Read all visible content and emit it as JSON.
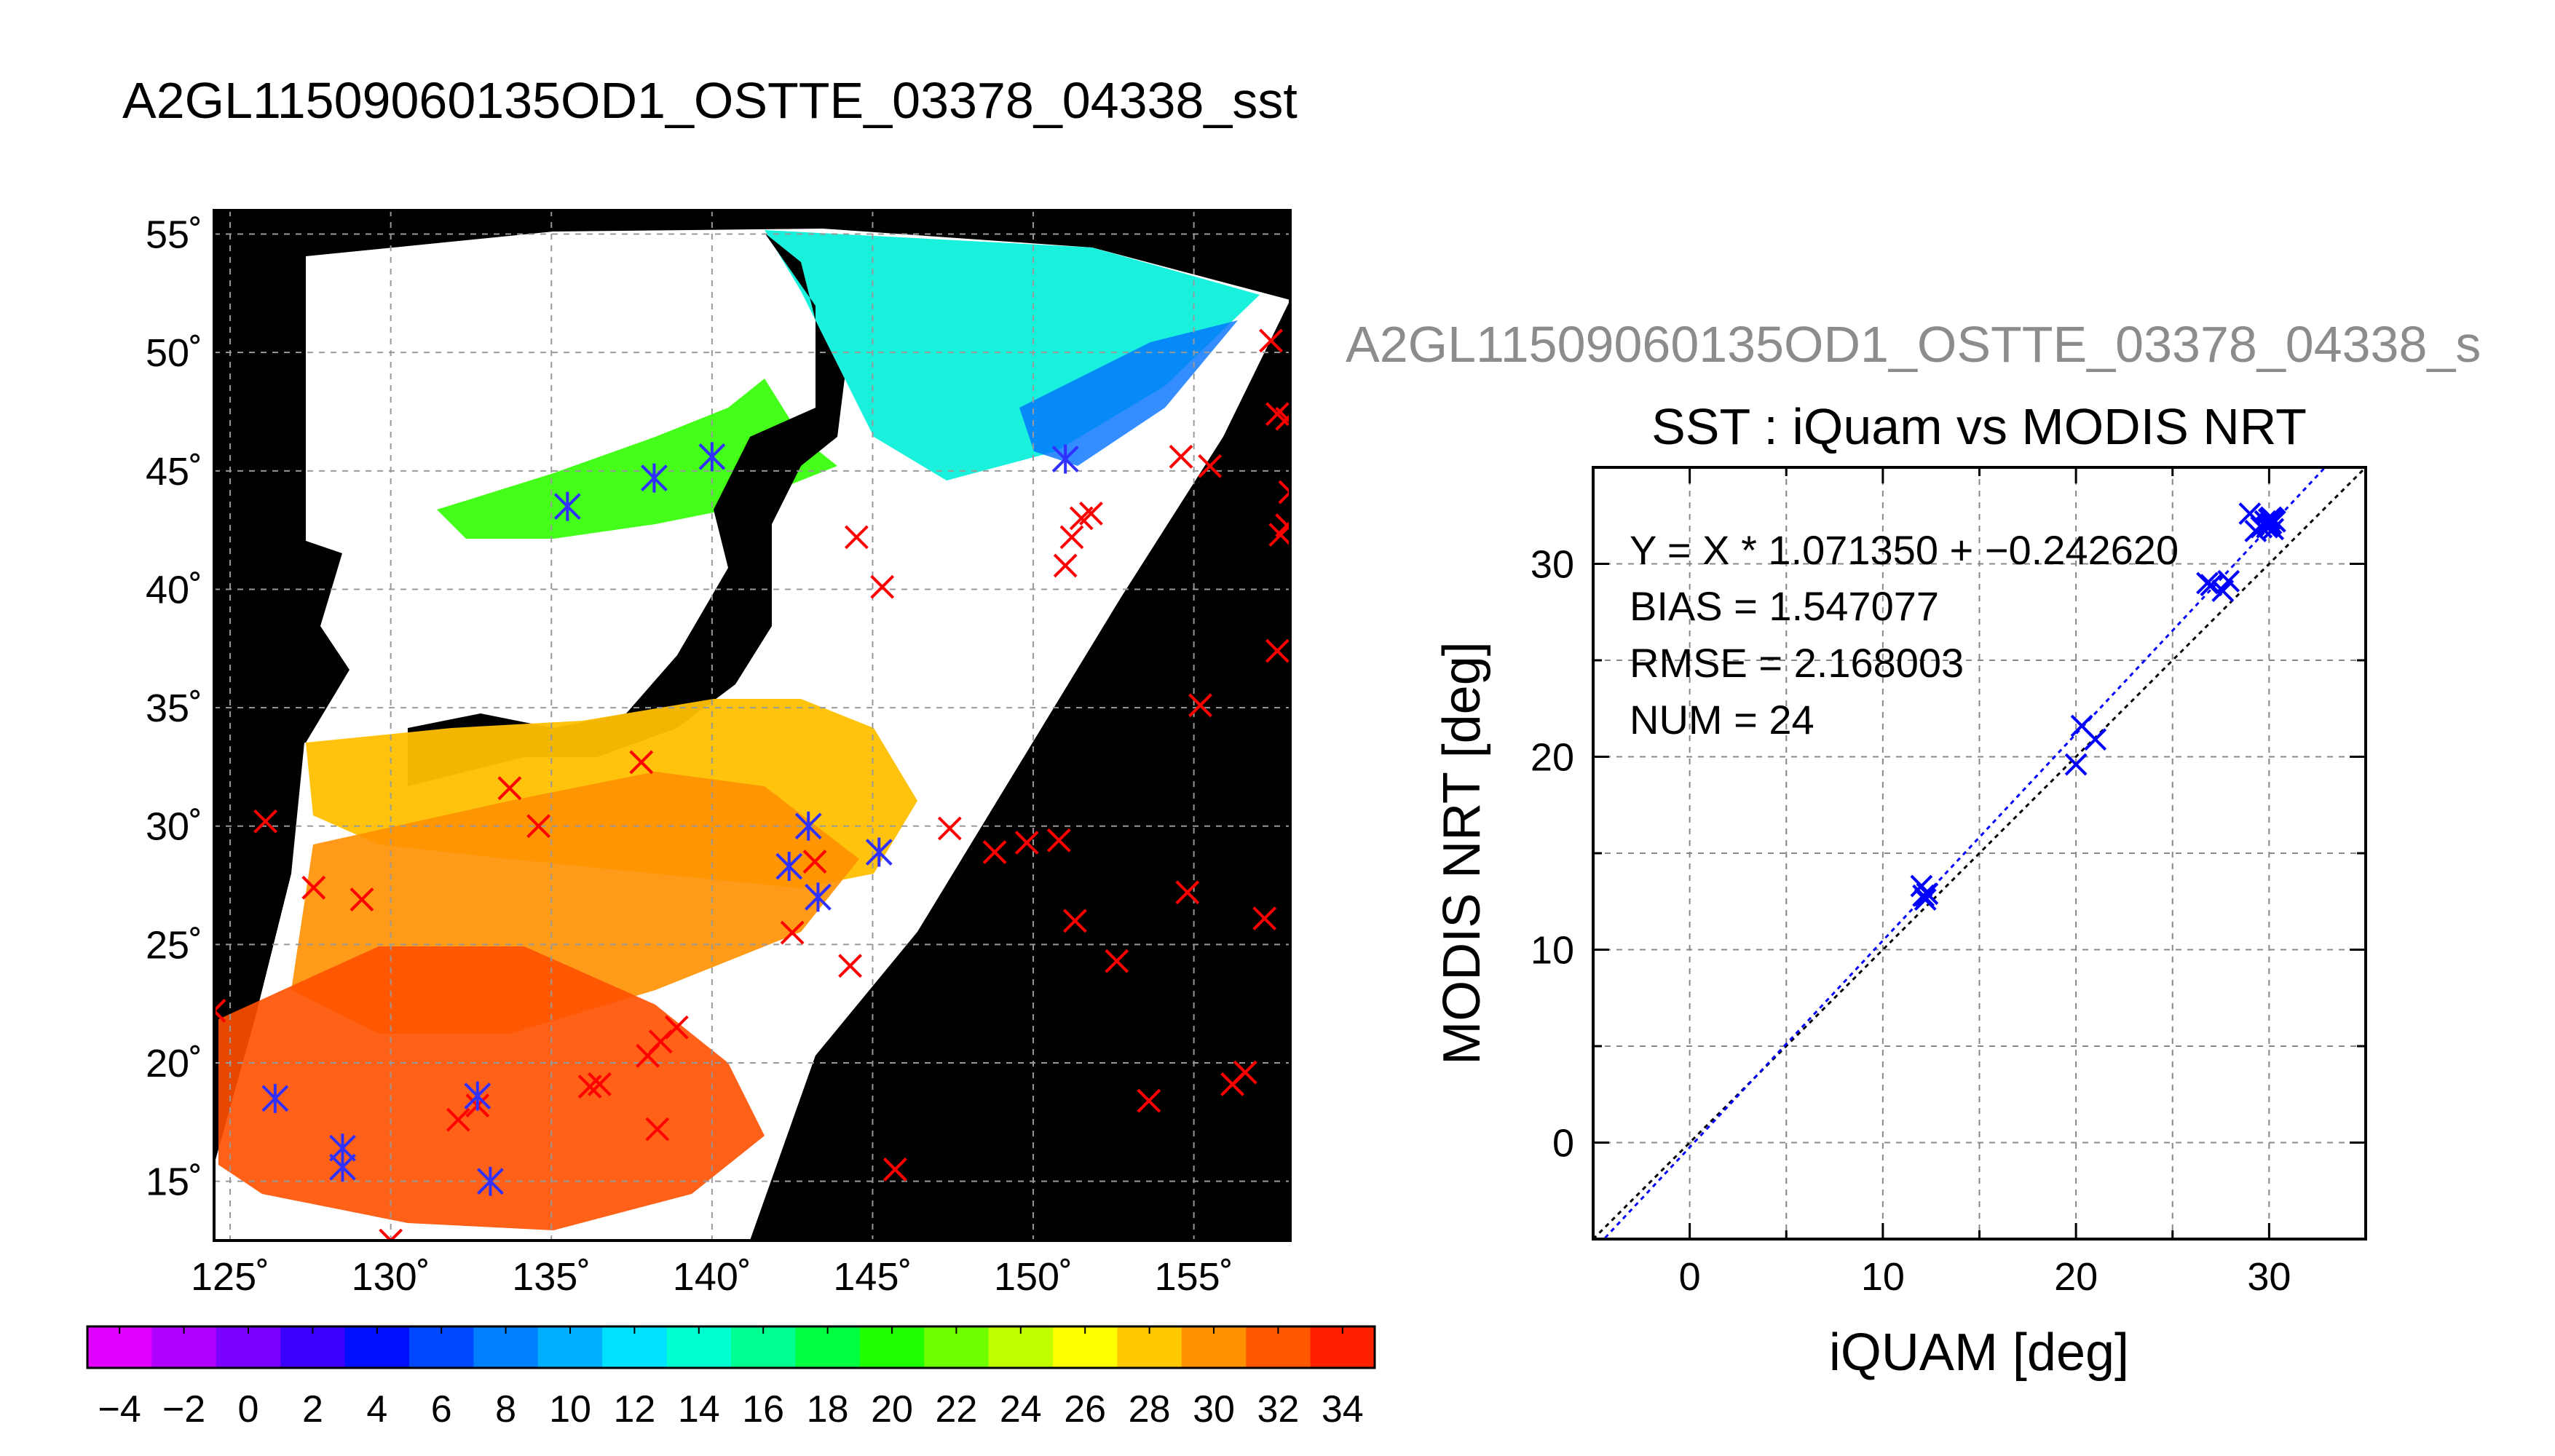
{
  "map_panel": {
    "title": "A2GL11509060135OD1_OSTTE_03378_04338_sst",
    "lon_labels": [
      "125˚",
      "130˚",
      "135˚",
      "140˚",
      "145˚",
      "150˚",
      "155˚"
    ],
    "lat_labels": [
      "55˚",
      "50˚",
      "45˚",
      "40˚",
      "35˚",
      "30˚",
      "25˚",
      "20˚",
      "15˚"
    ],
    "lon_values": [
      125,
      130,
      135,
      140,
      145,
      150,
      155
    ],
    "lat_values": [
      55,
      50,
      45,
      40,
      35,
      30,
      25,
      20,
      15
    ],
    "lon_range": [
      124.5,
      158
    ],
    "lat_range": [
      12.5,
      56
    ],
    "colorbar": {
      "tick_labels": [
        "−4",
        "−2",
        "0",
        "2",
        "4",
        "6",
        "8",
        "10",
        "12",
        "14",
        "16",
        "18",
        "20",
        "22",
        "24",
        "26",
        "28",
        "30",
        "32",
        "34"
      ],
      "range": [
        -5,
        35
      ],
      "colors": [
        "#e000ff",
        "#b000ff",
        "#7a00ff",
        "#3c00ff",
        "#0010ff",
        "#0048ff",
        "#0080ff",
        "#00b0ff",
        "#00e0ff",
        "#00ffd0",
        "#00ff90",
        "#00ff40",
        "#20ff00",
        "#70ff00",
        "#c0ff00",
        "#ffff00",
        "#ffc800",
        "#ff9000",
        "#ff5800",
        "#ff2000"
      ]
    },
    "markers_red": [
      [
        124.5,
        22.2
      ],
      [
        126.1,
        30.2
      ],
      [
        127.6,
        27.4
      ],
      [
        129.1,
        26.9
      ],
      [
        130.0,
        12.5
      ],
      [
        132.1,
        17.6
      ],
      [
        132.7,
        18.2
      ],
      [
        133.7,
        31.6
      ],
      [
        134.6,
        30.0
      ],
      [
        136.2,
        19.0
      ],
      [
        136.5,
        19.1
      ],
      [
        137.8,
        32.7
      ],
      [
        138.0,
        20.3
      ],
      [
        138.3,
        17.2
      ],
      [
        138.4,
        20.9
      ],
      [
        138.9,
        21.5
      ],
      [
        144.5,
        42.2
      ],
      [
        145.3,
        40.1
      ],
      [
        143.2,
        28.5
      ],
      [
        142.5,
        25.5
      ],
      [
        144.3,
        24.1
      ],
      [
        145.7,
        15.5
      ],
      [
        147.4,
        29.9
      ],
      [
        148.8,
        28.9
      ],
      [
        149.8,
        29.3
      ],
      [
        150.8,
        29.4
      ],
      [
        151.0,
        41.0
      ],
      [
        151.2,
        42.2
      ],
      [
        151.5,
        43.0
      ],
      [
        151.8,
        43.2
      ],
      [
        151.3,
        26.0
      ],
      [
        152.6,
        24.3
      ],
      [
        153.6,
        18.4
      ],
      [
        154.8,
        27.2
      ],
      [
        155.2,
        35.1
      ],
      [
        155.5,
        45.2
      ],
      [
        154.6,
        45.6
      ],
      [
        156.2,
        19.1
      ],
      [
        156.6,
        19.6
      ],
      [
        157.4,
        50.5
      ],
      [
        157.6,
        47.4
      ],
      [
        157.9,
        47.2
      ],
      [
        158.0,
        44.1
      ],
      [
        157.9,
        42.7
      ],
      [
        157.7,
        42.3
      ],
      [
        157.6,
        37.4
      ],
      [
        157.2,
        26.1
      ]
    ],
    "markers_blue": [
      [
        126.4,
        18.5
      ],
      [
        128.5,
        16.4
      ],
      [
        128.5,
        15.6
      ],
      [
        132.7,
        18.6
      ],
      [
        133.1,
        15.0
      ],
      [
        135.5,
        43.5
      ],
      [
        138.2,
        44.7
      ],
      [
        140.0,
        45.6
      ],
      [
        151.0,
        45.5
      ],
      [
        143.0,
        30.0
      ],
      [
        142.4,
        28.3
      ],
      [
        143.3,
        27.0
      ],
      [
        145.2,
        28.9
      ]
    ]
  },
  "scatter_panel": {
    "header_title": "A2GL11509060135OD1_OSTTE_03378_04338_s",
    "plot_title": "SST : iQuam vs MODIS NRT",
    "stats": [
      "Y = X * 1.071350 + −0.242620",
      "BIAS = 1.547077",
      "RMSE = 2.168003",
      "NUM = 24"
    ]
  },
  "chart_data": {
    "type": "scatter",
    "title": "SST : iQuam vs MODIS NRT",
    "xlabel": "iQUAM [deg]",
    "ylabel": "MODIS NRT [deg]",
    "xlim": [
      -5,
      35
    ],
    "ylim": [
      -5,
      35
    ],
    "xticks": [
      "0",
      "10",
      "20",
      "30"
    ],
    "yticks": [
      "0",
      "10",
      "20",
      "30"
    ],
    "grid": true,
    "fit": {
      "slope": 1.07135,
      "intercept": -0.24262
    },
    "x": [
      12.0,
      12.1,
      12.2,
      12.3,
      20.0,
      20.3,
      21.0,
      26.8,
      27.0,
      27.6,
      27.9,
      29.0,
      29.3,
      29.6,
      29.8,
      29.9,
      30.0,
      30.1,
      30.2,
      30.3,
      30.1,
      30.0,
      29.9,
      30.2
    ],
    "y": [
      13.3,
      12.8,
      12.6,
      12.9,
      19.6,
      21.6,
      20.9,
      29.0,
      28.9,
      28.6,
      29.1,
      32.6,
      31.7,
      31.9,
      32.2,
      31.9,
      32.3,
      32.1,
      31.8,
      32.2,
      32.4,
      32.0,
      32.1,
      32.3
    ],
    "series_colors": {
      "points": "#0000ff",
      "fit_line": "#0000ff",
      "identity_line": "#000000"
    }
  }
}
